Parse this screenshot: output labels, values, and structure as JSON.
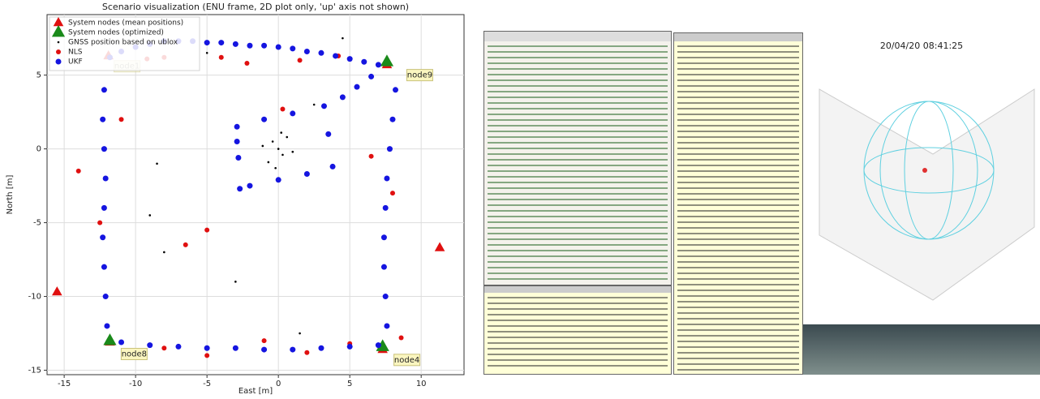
{
  "chart_data": {
    "type": "scatter",
    "title": "Scenario visualization (ENU frame, 2D plot only, 'up' axis not shown)",
    "x_label": "East [m]",
    "y_label": "North [m]",
    "xlim": [
      -16.2,
      13.0
    ],
    "ylim": [
      -15.3,
      9.1
    ],
    "xticks": [
      -15,
      -10,
      -5,
      0,
      5,
      10
    ],
    "yticks": [
      -15,
      -10,
      -5,
      0,
      5
    ],
    "grid": true,
    "legend": "upper left",
    "series": [
      {
        "name": "System nodes (mean positions)",
        "color": "#e01010",
        "marker": "triangle",
        "size": 7,
        "x": [
          -15.5,
          11.3,
          7.6,
          -11.8,
          7.3,
          -11.9
        ],
        "y": [
          -9.7,
          -6.7,
          5.7,
          -13.1,
          -13.6,
          6.3
        ]
      },
      {
        "name": "System nodes (optimized)",
        "color": "#1a8a1a",
        "marker": "triangle",
        "size": 9,
        "x": [
          7.6,
          -11.8,
          7.3
        ],
        "y": [
          5.9,
          -13.0,
          -13.4
        ]
      },
      {
        "name": "GNSS position based on ublox",
        "color": "#000000",
        "marker": "dot",
        "size": 1.3,
        "x": [
          0,
          0.3,
          -0.4,
          0.6,
          -0.7,
          0.2,
          -0.2,
          1.0,
          -1.1,
          -8.5,
          -5,
          -3,
          2.5,
          4.5,
          -8,
          1.5,
          -9
        ],
        "y": [
          0,
          -0.4,
          0.5,
          0.8,
          -0.9,
          1.1,
          -1.3,
          -0.2,
          0.2,
          -1,
          6.5,
          -9,
          3,
          7.5,
          -7,
          -12.5,
          -4.5
        ]
      },
      {
        "name": "NLS",
        "color": "#e01010",
        "marker": "circle",
        "size": 3,
        "x": [
          -8,
          -6.5,
          -2.2,
          1.5,
          4.2,
          -9.2,
          -14,
          -5,
          -5,
          -8,
          -1,
          2,
          5,
          8.6,
          8,
          -12.5,
          -11,
          6.5,
          -4,
          0.3
        ],
        "y": [
          6.2,
          -6.5,
          5.8,
          6,
          6.3,
          6.1,
          -1.5,
          -5.5,
          -14,
          -13.5,
          -13,
          -13.8,
          -13.2,
          -12.8,
          -3,
          -5,
          2,
          -0.5,
          6.2,
          2.7
        ]
      },
      {
        "name": "UKF",
        "color": "#1515e0",
        "marker": "circle",
        "size": 3.5,
        "x": [
          -11.8,
          -11,
          -10,
          -9,
          -8,
          -7,
          -6,
          -5,
          -4,
          -3,
          -2,
          -1,
          0,
          1,
          2,
          3,
          4,
          5,
          6,
          7,
          -12.2,
          -12.3,
          -12.2,
          -12.1,
          -12.2,
          -12.3,
          -12.2,
          -12.1,
          -12.0,
          -11,
          -9,
          -7,
          -5,
          -3,
          -1,
          1,
          3,
          5,
          7,
          8.2,
          8.0,
          7.8,
          7.6,
          7.5,
          7.4,
          7.4,
          7.5,
          7.6,
          -2.9,
          -1,
          1,
          3.2,
          3.5,
          3.8,
          2,
          0,
          -2,
          -2.7,
          -2.8,
          -2.9,
          4.5,
          5.5,
          6.5
        ],
        "y": [
          6.2,
          6.6,
          6.9,
          7.1,
          7.3,
          7.3,
          7.3,
          7.2,
          7.2,
          7.1,
          7.0,
          7.0,
          6.9,
          6.8,
          6.6,
          6.5,
          6.3,
          6.1,
          5.9,
          5.7,
          4,
          2,
          0,
          -2,
          -4,
          -6,
          -8,
          -10,
          -12,
          -13.1,
          -13.3,
          -13.4,
          -13.5,
          -13.5,
          -13.6,
          -13.6,
          -13.5,
          -13.4,
          -13.3,
          4,
          2,
          0,
          -2,
          -4,
          -6,
          -8,
          -10,
          -12,
          1.5,
          2.0,
          2.4,
          2.9,
          1,
          -1.2,
          -1.7,
          -2.1,
          -2.5,
          -2.7,
          -0.6,
          0.5,
          3.5,
          4.2,
          4.9
        ]
      }
    ],
    "annotations": [
      {
        "label": "node1",
        "x": -10.6,
        "y": 5.6
      },
      {
        "label": "node9",
        "x": 9.9,
        "y": 5.0
      },
      {
        "label": "node8",
        "x": -10.1,
        "y": -13.9
      },
      {
        "label": "node4",
        "x": 9.0,
        "y": -14.3
      }
    ]
  },
  "screenshot": {
    "clock": "20/04/20 08:41:25"
  }
}
